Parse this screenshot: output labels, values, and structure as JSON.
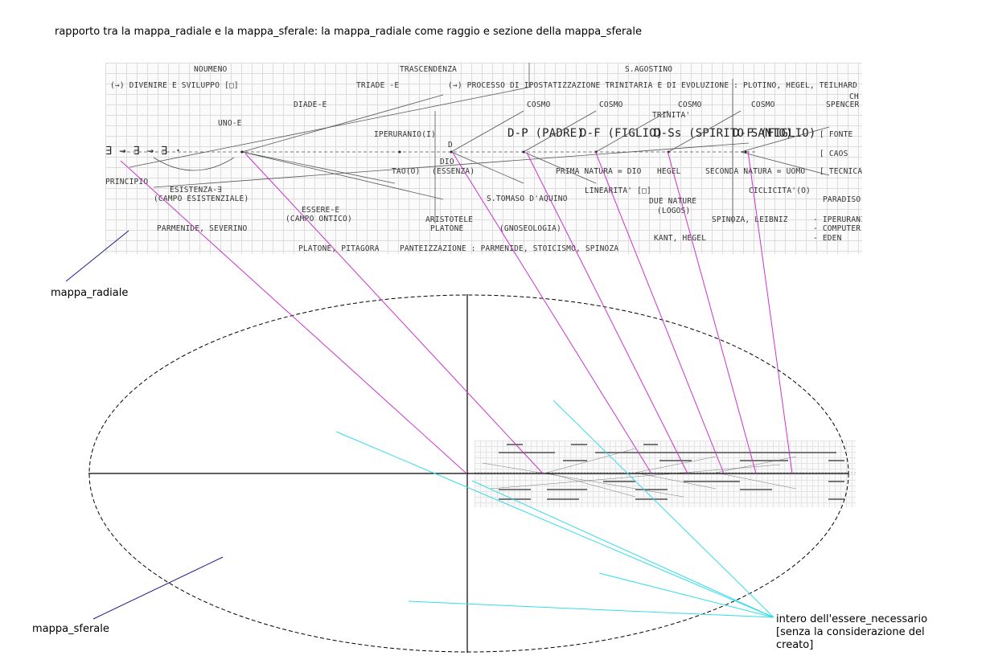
{
  "title": "rapporto tra la mappa_radiale e la mappa_sferale: la mappa_radiale come raggio e sezione della mappa_sferale",
  "labels": {
    "mappa_radiale": "mappa_radiale",
    "mappa_sferale": "mappa_sferale",
    "intero": [
      "intero dell'essere_necessario",
      "[senza la considerazione del",
      "creato]"
    ]
  },
  "handwritten_map": {
    "items": [
      "NOUMENO",
      "TRASCENDENZA",
      "S.AGOSTINO",
      "(→) DIVENIRE E SVILUPPO [□]",
      "TRIADE -E",
      "(→) PROCESSO DI IPOSTATIZZAZIONE TRINITARIA E DI EVOLUZIONE : PLOTINO, HEGEL, TEILHARD",
      "CH",
      "DIADE-E",
      "COSMO",
      "COSMO",
      "COSMO",
      "COSMO",
      "TRINITA'",
      "SPENCER",
      "UNO-E",
      "IPERURANIO(I)",
      "D-P (PADRE)",
      "D-F (FIGLIO)",
      "D-Ss (SPIRITO SANTO)",
      "D-F (FIGLIO)",
      "[ FONTE",
      "∃ → ∃ → ∃ ·",
      "D",
      "DIO",
      "(ESSENZA)",
      "[ CAOS",
      "TAO(O)",
      "PRIMA NATURA = DIO",
      "HEGEL",
      "SECONDA NATURA = UOMO",
      "[ TECNICA",
      "PRINCIPIO",
      "ESISTENZA-∃",
      "(CAMPO ESISTENZIALE)",
      "S.TOMASO D'AQUINO",
      "LINEARITA' [□]",
      "DUE NATURE",
      "(LOGOS)",
      "CICLICITA'(O)",
      "PARADISO",
      "ESSERE-E",
      "(CAMPO ONTICO)",
      "ARISTOTELE",
      "PLATONE",
      "(GNOSEOLOGIA)",
      "SPINOZA, LEIBNIZ",
      "- IPERURANIO",
      "- COMPUTER",
      "- EDEN",
      "PARMENIDE, SEVERINO",
      "KANT, HEGEL",
      "PLATONE, PITAGORA",
      "PANTEIZZAZIONE : PARMENIDE, STOICISMO, SPINOZA"
    ]
  },
  "colors": {
    "magenta": "#cc33cc",
    "cyan": "#33dde8",
    "navy": "#1a1a8c",
    "axis": "#000000",
    "grid": "#dcdcdc"
  }
}
